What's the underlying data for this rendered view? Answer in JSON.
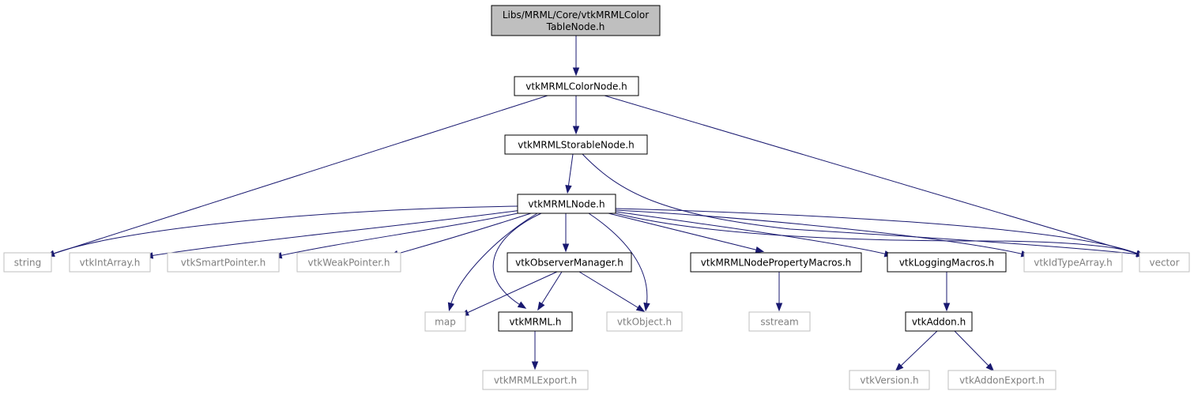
{
  "graph": {
    "colors": {
      "edge": "#191970",
      "root_fill": "#bfbfbf",
      "box_border": "#000000",
      "external_border": "#bfbfbf",
      "external_text": "#7f7f7f"
    },
    "nodes": {
      "root": {
        "lines": [
          "Libs/MRML/Core/vtkMRMLColor",
          "TableNode.h"
        ],
        "kind": "root"
      },
      "colornode": {
        "lines": [
          "vtkMRMLColorNode.h"
        ],
        "kind": "local"
      },
      "storable": {
        "lines": [
          "vtkMRMLStorableNode.h"
        ],
        "kind": "local"
      },
      "mrmlnode": {
        "lines": [
          "vtkMRMLNode.h"
        ],
        "kind": "local"
      },
      "string": {
        "lines": [
          "string"
        ],
        "kind": "external"
      },
      "intarray": {
        "lines": [
          "vtkIntArray.h"
        ],
        "kind": "external"
      },
      "smartptr": {
        "lines": [
          "vtkSmartPointer.h"
        ],
        "kind": "external"
      },
      "weakptr": {
        "lines": [
          "vtkWeakPointer.h"
        ],
        "kind": "external"
      },
      "observer": {
        "lines": [
          "vtkObserverManager.h"
        ],
        "kind": "local"
      },
      "propmacros": {
        "lines": [
          "vtkMRMLNodePropertyMacros.h"
        ],
        "kind": "local"
      },
      "logging": {
        "lines": [
          "vtkLoggingMacros.h"
        ],
        "kind": "local"
      },
      "idtype": {
        "lines": [
          "vtkIdTypeArray.h"
        ],
        "kind": "external"
      },
      "vector": {
        "lines": [
          "vector"
        ],
        "kind": "external"
      },
      "map": {
        "lines": [
          "map"
        ],
        "kind": "external"
      },
      "mrmlh": {
        "lines": [
          "vtkMRML.h"
        ],
        "kind": "local"
      },
      "object": {
        "lines": [
          "vtkObject.h"
        ],
        "kind": "external"
      },
      "sstream": {
        "lines": [
          "sstream"
        ],
        "kind": "external"
      },
      "addon": {
        "lines": [
          "vtkAddon.h"
        ],
        "kind": "local"
      },
      "export": {
        "lines": [
          "vtkMRMLExport.h"
        ],
        "kind": "external"
      },
      "version": {
        "lines": [
          "vtkVersion.h"
        ],
        "kind": "external"
      },
      "addonexport": {
        "lines": [
          "vtkAddonExport.h"
        ],
        "kind": "external"
      }
    }
  }
}
